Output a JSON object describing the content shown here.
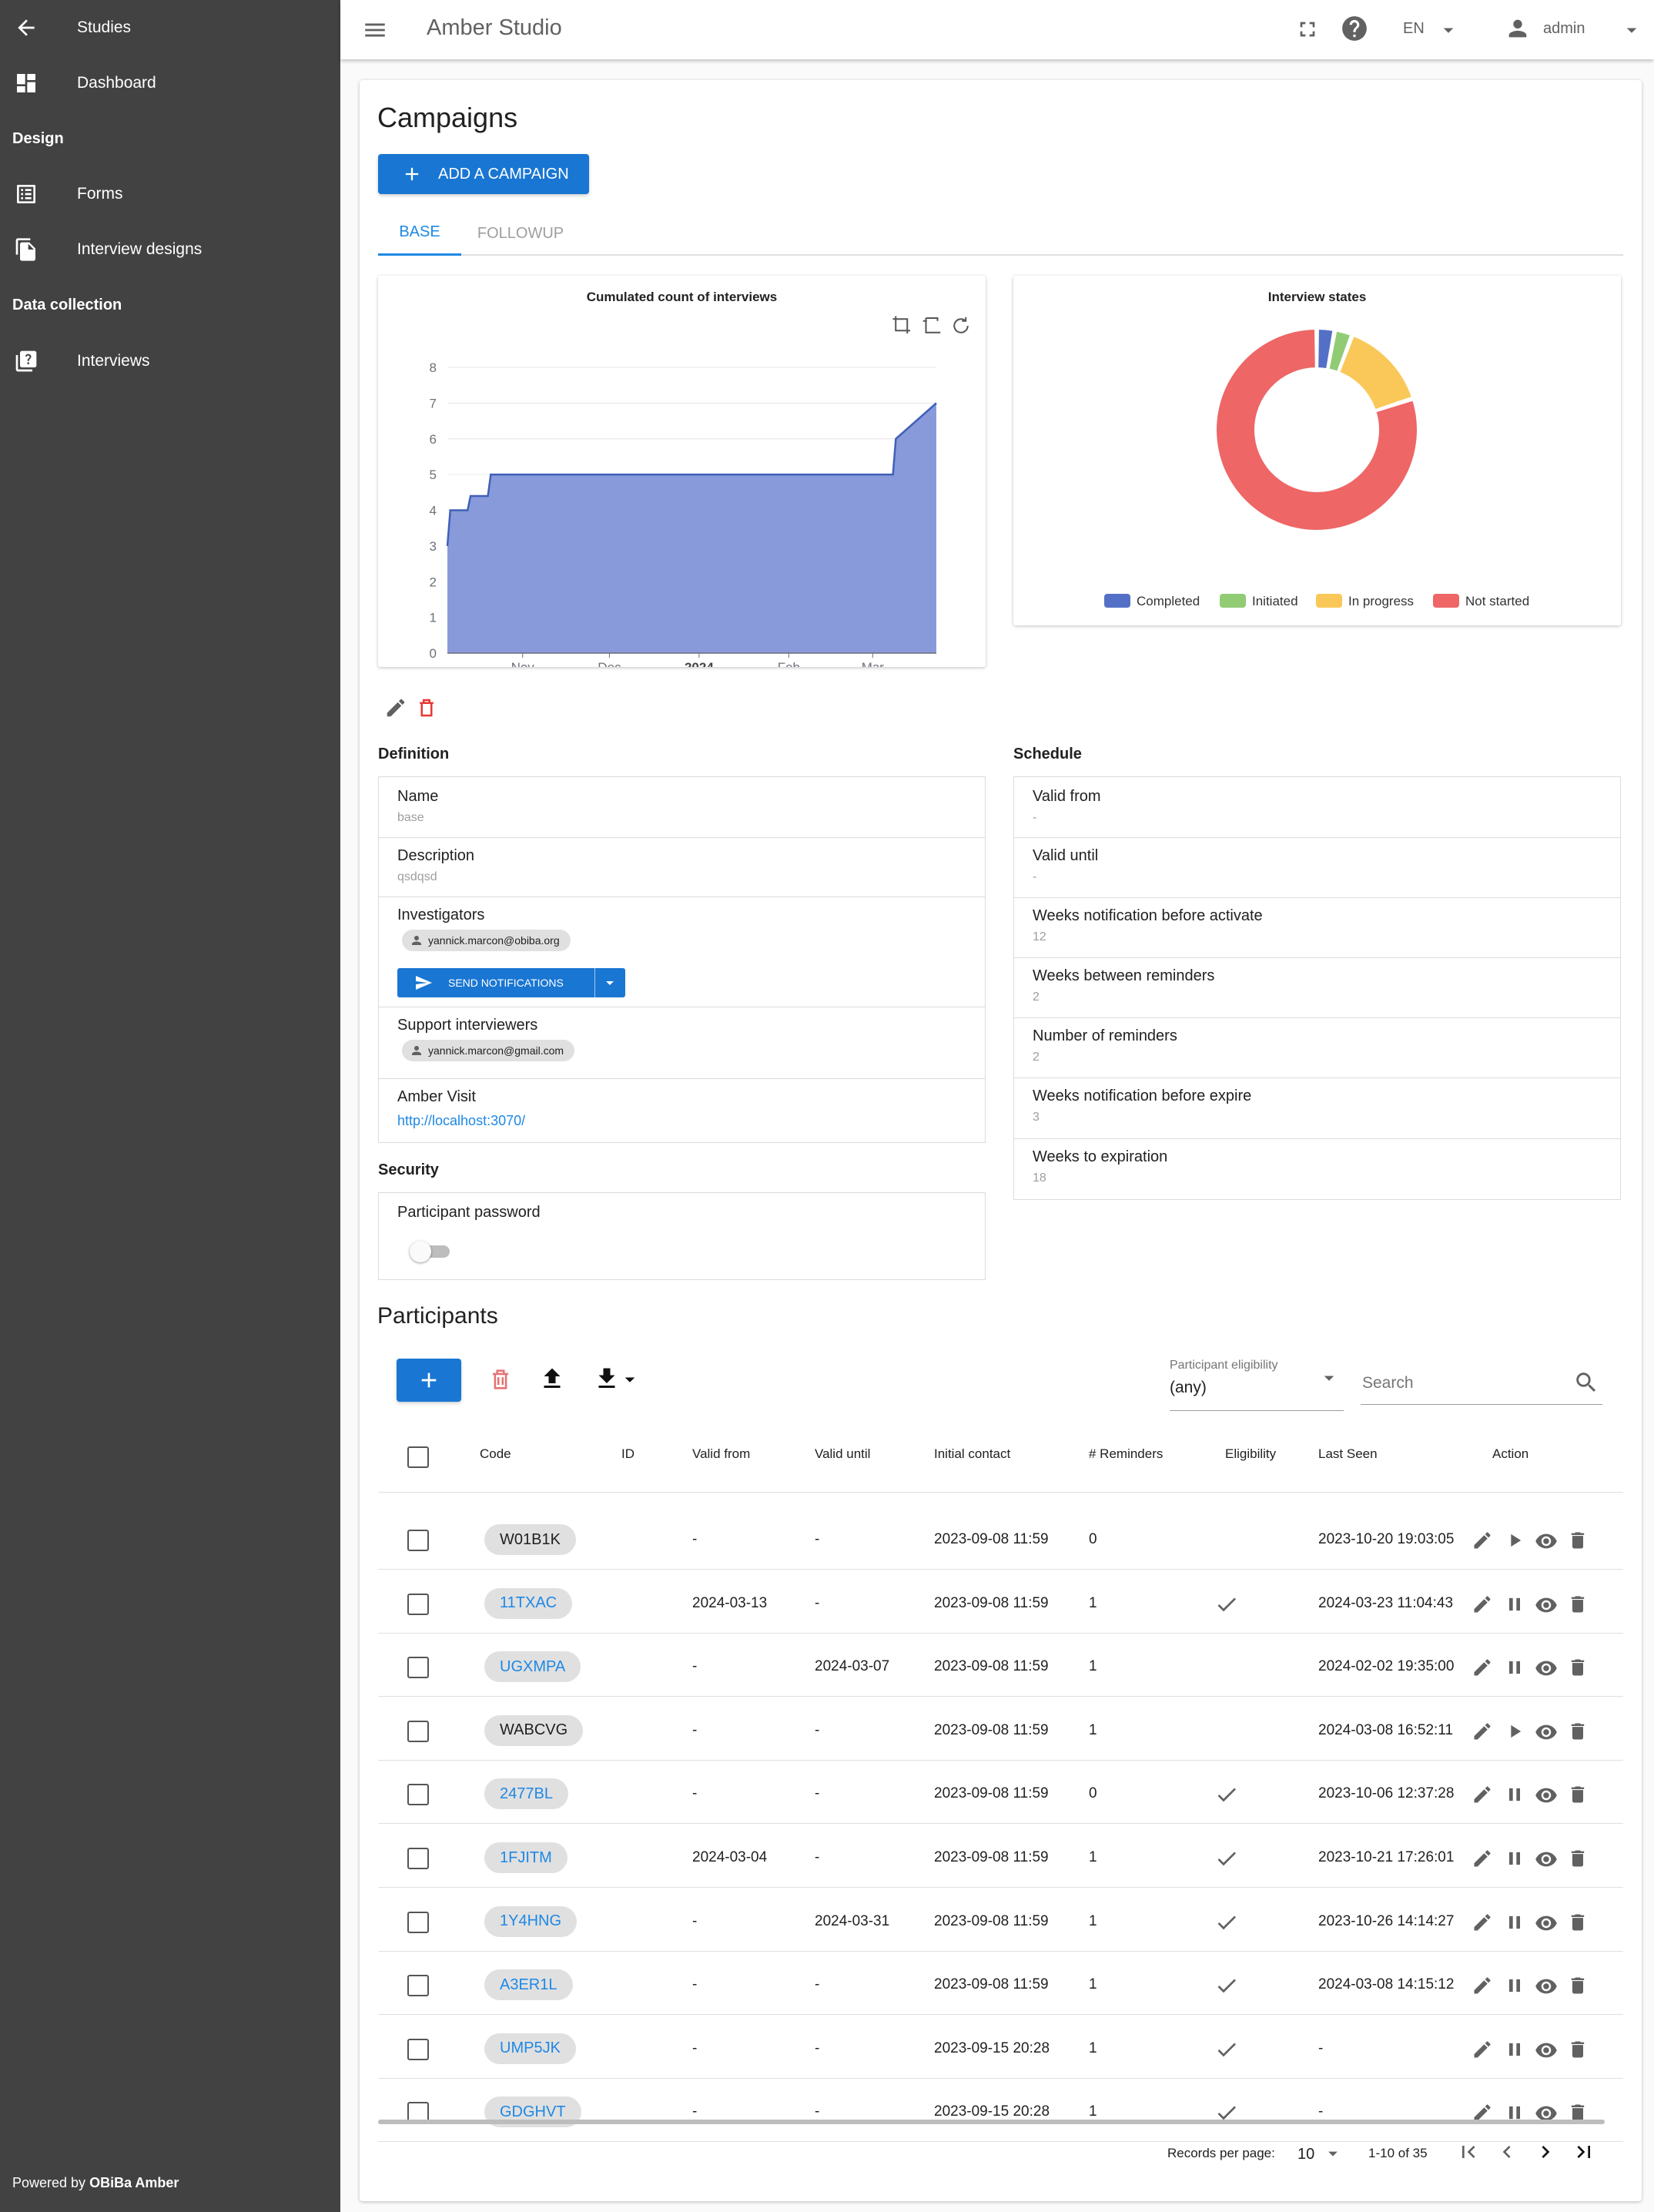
{
  "sidebar": {
    "back_label": "Studies",
    "dashboard_label": "Dashboard",
    "design_section": "Design",
    "forms_label": "Forms",
    "interview_designs_label": "Interview designs",
    "data_collection_section": "Data collection",
    "interviews_label": "Interviews",
    "powered_prefix": "Powered by",
    "powered_brand": "OBiBa Amber"
  },
  "header": {
    "app_title": "Amber Studio",
    "language": "EN",
    "user": "admin"
  },
  "page": {
    "title": "Campaigns",
    "add_button": "ADD A CAMPAIGN",
    "tabs": [
      "BASE",
      "FOLLOWUP"
    ]
  },
  "chart_data": [
    {
      "type": "area",
      "title": "Cumulated count of interviews",
      "x_ticks": [
        "Nov",
        "Dec",
        "2024",
        "Feb",
        "Mar"
      ],
      "ylim": [
        0,
        8
      ],
      "y_ticks": [
        0,
        1,
        2,
        3,
        4,
        5,
        6,
        7,
        8
      ],
      "x": [
        "2023-10-06",
        "2023-10-07",
        "2023-10-13",
        "2023-10-14",
        "2023-10-20",
        "2023-10-21",
        "2023-10-26",
        "2023-10-27",
        "2024-02-02",
        "2024-03-08",
        "2024-03-09",
        "2024-03-23"
      ],
      "values": [
        3,
        4,
        4,
        4.4,
        4.4,
        5,
        5,
        5,
        5,
        5,
        6,
        7
      ],
      "color": "#7b8fd6",
      "grid": true
    },
    {
      "type": "pie",
      "title": "Interview states",
      "categories": [
        "Completed",
        "Initiated",
        "In progress",
        "Not started"
      ],
      "values": [
        1,
        1,
        5,
        28
      ],
      "colors": [
        "#5470c6",
        "#91cc75",
        "#fac858",
        "#ee6666"
      ],
      "legend": "bottom"
    }
  ],
  "definition": {
    "heading": "Definition",
    "name_label": "Name",
    "name_value": "base",
    "description_label": "Description",
    "description_value": "qsdqsd",
    "investigators_label": "Investigators",
    "investigator": "yannick.marcon@obiba.org",
    "send_notifications": "SEND NOTIFICATIONS",
    "support_label": "Support interviewers",
    "support_interviewer": "yannick.marcon@gmail.com",
    "visit_label": "Amber Visit",
    "visit_url": "http://localhost:3070/"
  },
  "security": {
    "heading": "Security",
    "password_label": "Participant password",
    "password_enabled": false
  },
  "schedule": {
    "heading": "Schedule",
    "items": [
      {
        "label": "Valid from",
        "value": "-"
      },
      {
        "label": "Valid until",
        "value": "-"
      },
      {
        "label": "Weeks notification before activate",
        "value": "12"
      },
      {
        "label": "Weeks between reminders",
        "value": "2"
      },
      {
        "label": "Number of reminders",
        "value": "2"
      },
      {
        "label": "Weeks notification before expire",
        "value": "3"
      },
      {
        "label": "Weeks to expiration",
        "value": "18"
      }
    ]
  },
  "participants": {
    "title": "Participants",
    "eligibility_label": "Participant eligibility",
    "eligibility_value": "(any)",
    "search_placeholder": "Search",
    "columns": [
      "Code",
      "ID",
      "Valid from",
      "Valid until",
      "Initial contact",
      "# Reminders",
      "Eligibility",
      "Last Seen",
      "Action"
    ],
    "rows": [
      {
        "code": "W01B1K",
        "active": false,
        "id": "",
        "valid_from": "-",
        "valid_until": "-",
        "initial_contact": "2023-09-08 11:59",
        "reminders": "0",
        "eligible": false,
        "last_seen": "2023-10-20 19:03:05"
      },
      {
        "code": "11TXAC",
        "active": true,
        "id": "",
        "valid_from": "2024-03-13",
        "valid_until": "-",
        "initial_contact": "2023-09-08 11:59",
        "reminders": "1",
        "eligible": true,
        "last_seen": "2024-03-23 11:04:43"
      },
      {
        "code": "UGXMPA",
        "active": true,
        "id": "",
        "valid_from": "-",
        "valid_until": "2024-03-07",
        "initial_contact": "2023-09-08 11:59",
        "reminders": "1",
        "eligible": false,
        "last_seen": "2024-02-02 19:35:00"
      },
      {
        "code": "WABCVG",
        "active": false,
        "id": "",
        "valid_from": "-",
        "valid_until": "-",
        "initial_contact": "2023-09-08 11:59",
        "reminders": "1",
        "eligible": false,
        "last_seen": "2024-03-08 16:52:11"
      },
      {
        "code": "2477BL",
        "active": true,
        "id": "",
        "valid_from": "-",
        "valid_until": "-",
        "initial_contact": "2023-09-08 11:59",
        "reminders": "0",
        "eligible": true,
        "last_seen": "2023-10-06 12:37:28"
      },
      {
        "code": "1FJITM",
        "active": true,
        "id": "",
        "valid_from": "2024-03-04",
        "valid_until": "-",
        "initial_contact": "2023-09-08 11:59",
        "reminders": "1",
        "eligible": true,
        "last_seen": "2023-10-21 17:26:01"
      },
      {
        "code": "1Y4HNG",
        "active": true,
        "id": "",
        "valid_from": "-",
        "valid_until": "2024-03-31",
        "initial_contact": "2023-09-08 11:59",
        "reminders": "1",
        "eligible": true,
        "last_seen": "2023-10-26 14:14:27"
      },
      {
        "code": "A3ER1L",
        "active": true,
        "id": "",
        "valid_from": "-",
        "valid_until": "-",
        "initial_contact": "2023-09-08 11:59",
        "reminders": "1",
        "eligible": true,
        "last_seen": "2024-03-08 14:15:12"
      },
      {
        "code": "UMP5JK",
        "active": true,
        "id": "",
        "valid_from": "-",
        "valid_until": "-",
        "initial_contact": "2023-09-15 20:28",
        "reminders": "1",
        "eligible": true,
        "last_seen": "-"
      },
      {
        "code": "GDGHVT",
        "active": true,
        "id": "",
        "valid_from": "-",
        "valid_until": "-",
        "initial_contact": "2023-09-15 20:28",
        "reminders": "1",
        "eligible": true,
        "last_seen": "-"
      }
    ],
    "pagination": {
      "rows_per_page_label": "Records per page:",
      "rows_per_page": "10",
      "range": "1-10 of 35"
    }
  }
}
